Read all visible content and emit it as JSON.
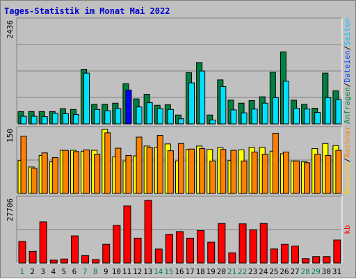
{
  "chart_data": {
    "type": "bar",
    "title": "Tages-Statistik im Monat Mai 2022",
    "categories": [
      "1",
      "2",
      "3",
      "4",
      "5",
      "6",
      "7",
      "8",
      "9",
      "10",
      "11",
      "12",
      "13",
      "14",
      "15",
      "16",
      "17",
      "18",
      "19",
      "20",
      "21",
      "22",
      "23",
      "24",
      "25",
      "26",
      "27",
      "28",
      "29",
      "30",
      "31"
    ],
    "weekend_days": [
      "1",
      "7",
      "8",
      "14",
      "15",
      "21",
      "22",
      "28",
      "29"
    ],
    "panels": [
      {
        "name": "top",
        "ymax_label": "2436",
        "ylim": [
          0,
          2436
        ],
        "legend": [
          "Anfragen",
          "Dateien",
          "Seiten"
        ],
        "series": [
          {
            "name": "Anfragen",
            "color": "#008040",
            "values": [
              290,
              290,
              290,
              290,
              360,
              340,
              1290,
              460,
              460,
              490,
              950,
              590,
              700,
              440,
              450,
              210,
              1210,
              1450,
              210,
              1040,
              560,
              490,
              550,
              640,
              1220,
              1700,
              560,
              460,
              370,
              1200,
              780
            ]
          },
          {
            "name": "Dateien",
            "color": "#00e0ff",
            "values": [
              180,
              180,
              170,
              250,
              240,
              220,
              1200,
              340,
              310,
              360,
              650,
              400,
              500,
              360,
              340,
              120,
              970,
              1250,
              90,
              880,
              330,
              260,
              350,
              490,
              620,
              1010,
              370,
              350,
              270,
              620,
              570
            ]
          },
          {
            "name": "Seiten",
            "color": "#0000ff",
            "values": [
              0,
              0,
              0,
              0,
              0,
              0,
              0,
              0,
              0,
              0,
              800,
              0,
              0,
              0,
              0,
              0,
              0,
              0,
              0,
              0,
              0,
              0,
              0,
              0,
              0,
              0,
              0,
              0,
              0,
              0,
              0
            ]
          }
        ]
      },
      {
        "name": "middle",
        "ymax_label": "150",
        "ylim": [
          0,
          150
        ],
        "legend": [
          "Besuche",
          "Rechner"
        ],
        "series": [
          {
            "name": "Besuche",
            "color": "#ffff00",
            "values": [
              77,
              62,
              89,
              74,
              101,
              101,
              99,
              101,
              150,
              86,
              76,
              88,
              111,
              108,
              116,
              76,
              103,
              111,
              103,
              107,
              77,
              102,
              108,
              108,
              99,
              93,
              76,
              74,
              105,
              117,
              112
            ]
          },
          {
            "name": "Rechner",
            "color": "#ff8000",
            "values": [
              134,
              59,
              95,
              84,
              101,
              98,
              102,
              92,
              142,
              106,
              89,
              132,
              108,
              136,
              100,
              117,
              104,
              105,
              76,
              103,
              101,
              76,
              97,
              92,
              141,
              97,
              76,
              72,
              92,
              89,
              101
            ]
          }
        ]
      },
      {
        "name": "bottom",
        "ymax_label": "27706",
        "ylim": [
          0,
          27706
        ],
        "legend": [
          "kb"
        ],
        "series": [
          {
            "name": "kb",
            "color": "#ff0000",
            "values": [
              9310,
              5020,
              17800,
              1260,
              1730,
              11730,
              3180,
              1480,
              8080,
              16300,
              24700,
              10740,
              27100,
              6040,
              12400,
              13580,
              10740,
              14010,
              9020,
              17100,
              4410,
              16950,
              14400,
              17100,
              6080,
              8080,
              7330,
              1880,
              2780,
              2780,
              9950
            ]
          }
        ]
      }
    ]
  }
}
